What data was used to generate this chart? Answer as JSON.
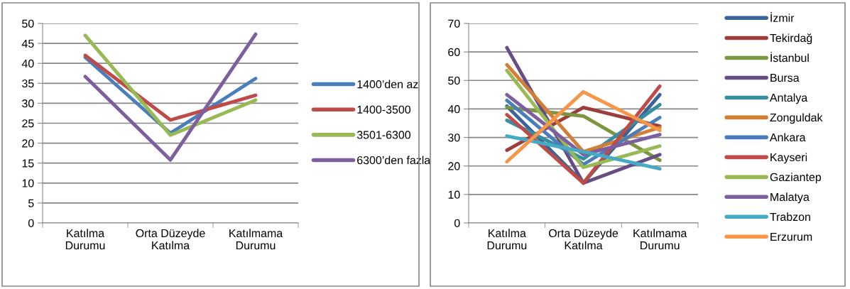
{
  "chart_data": [
    {
      "type": "line",
      "categories": [
        "Katılma\nDurumu",
        "Orta Düzeyde\nKatılma",
        "Katılmama\nDurumu"
      ],
      "ylim": [
        0,
        50
      ],
      "yticks": [
        0,
        5,
        10,
        15,
        20,
        25,
        30,
        35,
        40,
        45,
        50
      ],
      "grid": "y",
      "legend": "right",
      "marker": "none",
      "line_style": "solid",
      "series": [
        {
          "name": "1400’den az",
          "color": "#4a7ebb",
          "values": [
            41.5,
            22.5,
            36.2
          ]
        },
        {
          "name": "1400-3500",
          "color": "#be4b48",
          "values": [
            42,
            25.8,
            32
          ]
        },
        {
          "name": "3501-6300",
          "color": "#98b954",
          "values": [
            47,
            22,
            30.8
          ]
        },
        {
          "name": "6300’den fazla",
          "color": "#7d5fa0",
          "values": [
            36.7,
            15.8,
            47.3
          ]
        }
      ]
    },
    {
      "type": "line",
      "categories": [
        "Katılma\nDurumu",
        "Orta Düzeyde\nKatılma",
        "Katılmama\nDurumu"
      ],
      "ylim": [
        0,
        70
      ],
      "yticks": [
        0,
        10,
        20,
        30,
        40,
        50,
        60,
        70
      ],
      "grid": "y",
      "legend": "right",
      "marker": "none",
      "line_style": "solid",
      "series": [
        {
          "name": "İzmir",
          "color": "#3a6495",
          "values": [
            41,
            14,
            45
          ]
        },
        {
          "name": "Tekirdağ",
          "color": "#9b3d3b",
          "values": [
            25.5,
            40.5,
            34
          ]
        },
        {
          "name": "İstanbul",
          "color": "#7b963f",
          "values": [
            40.5,
            37.5,
            22
          ]
        },
        {
          "name": "Bursa",
          "color": "#664d84",
          "values": [
            61.5,
            14,
            24
          ]
        },
        {
          "name": "Antalya",
          "color": "#368ea0",
          "values": [
            36,
            22.5,
            41.5
          ]
        },
        {
          "name": "Zonguldak",
          "color": "#d17e36",
          "values": [
            55.5,
            25,
            33.5
          ]
        },
        {
          "name": "Ankara",
          "color": "#4a7ebb",
          "values": [
            43,
            20.5,
            37
          ]
        },
        {
          "name": "Kayseri",
          "color": "#be4b48",
          "values": [
            38,
            14,
            48
          ]
        },
        {
          "name": "Gaziantep",
          "color": "#98b954",
          "values": [
            53.5,
            19.5,
            27
          ]
        },
        {
          "name": "Malatya",
          "color": "#7d5fa0",
          "values": [
            45,
            24,
            31
          ]
        },
        {
          "name": "Trabzon",
          "color": "#46aac5",
          "values": [
            30.5,
            25,
            19
          ]
        },
        {
          "name": "Erzurum",
          "color": "#f79646",
          "values": [
            21.5,
            46,
            32.5
          ]
        }
      ]
    }
  ]
}
